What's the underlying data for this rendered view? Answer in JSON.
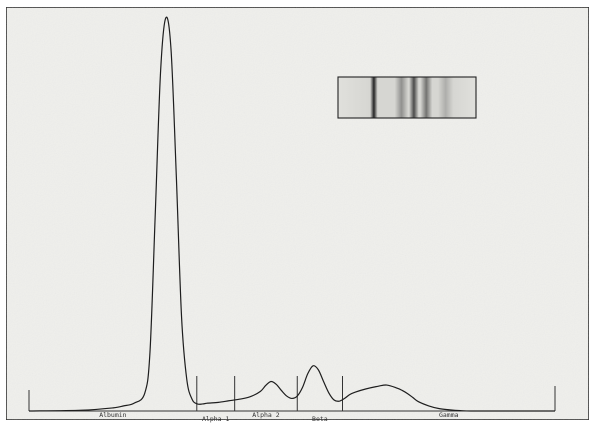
{
  "chart_data": {
    "type": "line",
    "title": "",
    "xlabel": "",
    "ylabel": "",
    "xlim": [
      0,
      100
    ],
    "ylim": [
      0,
      100
    ],
    "grid": false,
    "legend": "none",
    "series": [
      {
        "x": [
          0,
          10,
          16,
          18,
          20,
          22,
          23,
          24,
          25,
          26,
          27,
          28,
          29,
          30,
          31,
          32,
          33,
          34,
          36,
          38,
          40,
          42,
          44,
          45,
          46,
          47,
          48,
          49,
          50,
          51,
          52,
          53,
          54,
          55,
          56,
          57,
          58,
          59,
          60,
          61,
          62,
          64,
          66,
          68,
          70,
          71,
          72,
          73,
          74,
          76,
          78,
          80,
          82,
          84,
          88,
          92,
          96,
          100
        ],
        "y": [
          0,
          0.2,
          0.8,
          1.3,
          2.0,
          4.5,
          15,
          50,
          86,
          100,
          92,
          60,
          24,
          8,
          3,
          1.8,
          1.8,
          2.0,
          2.2,
          2.6,
          3.0,
          3.6,
          5.0,
          6.5,
          7.5,
          6.8,
          5.2,
          3.8,
          3.2,
          3.8,
          6,
          9.5,
          11.5,
          10.5,
          7.5,
          4.6,
          2.8,
          2.5,
          3.2,
          4.2,
          4.8,
          5.6,
          6.2,
          6.6,
          5.8,
          5.2,
          4.4,
          3.4,
          2.4,
          1.3,
          0.6,
          0.3,
          0.1,
          0,
          0,
          0,
          0,
          0
        ]
      }
    ],
    "regions": [
      {
        "label": "Albumin",
        "start": 0,
        "end": 31.9
      },
      {
        "label": "Alpha 1",
        "start": 31.9,
        "end": 39.1
      },
      {
        "label": "Alpha 2",
        "start": 39.1,
        "end": 51.0
      },
      {
        "label": "Beta",
        "start": 51.0,
        "end": 59.6
      },
      {
        "label": "Gamma",
        "start": 59.6,
        "end": 100
      }
    ],
    "gel_strip": {
      "bands": [
        {
          "pos": 0.26,
          "darkness": 0.95
        },
        {
          "pos": 0.46,
          "darkness": 0.4
        },
        {
          "pos": 0.55,
          "darkness": 0.75
        },
        {
          "pos": 0.64,
          "darkness": 0.55
        },
        {
          "pos": 0.78,
          "darkness": 0.25
        }
      ]
    }
  }
}
